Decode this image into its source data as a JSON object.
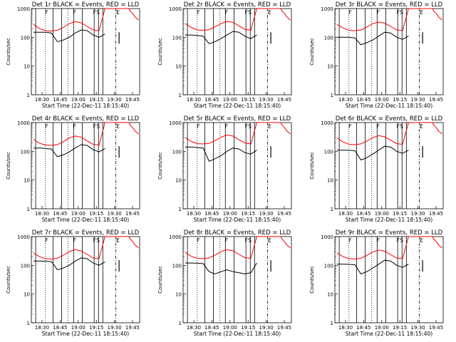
{
  "chart_data": [
    {
      "type": "line",
      "title": "Det 1r BLACK = Events, RED = LLD",
      "xlabel": "Start Time (22-Dec-11 18:15:40)",
      "ylabel": "Counts/sec",
      "yscale": "log",
      "ylim": [
        1,
        1000
      ],
      "xticks": [
        "18:30",
        "18:45",
        "19:00",
        "19:15",
        "19:30",
        "19:45"
      ],
      "yticks": [
        "1",
        "10",
        "100",
        "1000"
      ],
      "series": [
        {
          "name": "RED",
          "values": [
            280,
            200,
            170,
            165,
            175,
            220,
            300,
            350,
            320,
            240,
            180,
            170,
            1000,
            1000,
            800,
            700,
            600,
            500,
            450,
            400
          ]
        },
        {
          "name": "BLACK",
          "values": [
            150,
            150,
            150,
            140,
            70,
            80,
            100,
            140,
            180,
            170,
            120,
            100,
            130,
            null,
            null,
            null,
            null,
            null,
            null,
            null
          ]
        }
      ],
      "markers": [
        "F",
        "F",
        "FS",
        "E"
      ]
    },
    {
      "type": "line",
      "title": "Det 2r BLACK = Events, RED = LLD",
      "xlabel": "Start Time (22-Dec-11 18:15:40)",
      "ylabel": "Counts/sec",
      "yscale": "log",
      "ylim": [
        1,
        1000
      ],
      "xticks": [
        "18:30",
        "18:45",
        "19:00",
        "19:15",
        "19:30",
        "19:45"
      ],
      "yticks": [
        "1",
        "10",
        "100",
        "1000"
      ],
      "series": [
        {
          "name": "RED",
          "values": [
            300,
            220,
            180,
            175,
            185,
            230,
            300,
            360,
            330,
            250,
            190,
            175,
            1000,
            1000,
            800,
            700,
            600,
            500,
            450,
            400
          ]
        },
        {
          "name": "BLACK",
          "values": [
            120,
            120,
            115,
            110,
            60,
            70,
            90,
            120,
            160,
            150,
            110,
            90,
            120,
            null,
            null,
            null,
            null,
            null,
            null,
            null
          ]
        }
      ],
      "markers": [
        "F",
        "F",
        "FS",
        "E"
      ]
    },
    {
      "type": "line",
      "title": "Det 3r BLACK = Events, RED = LLD",
      "xlabel": "Start Time (22-Dec-11 18:15:40)",
      "ylabel": "Counts/sec",
      "yscale": "log",
      "ylim": [
        1,
        1000
      ],
      "xticks": [
        "18:30",
        "18:45",
        "19:00",
        "19:15",
        "19:30",
        "19:45"
      ],
      "yticks": [
        "1",
        "10",
        "100",
        "1000"
      ],
      "series": [
        {
          "name": "RED",
          "values": [
            280,
            210,
            175,
            170,
            180,
            225,
            300,
            340,
            310,
            240,
            180,
            170,
            1000,
            1000,
            800,
            700,
            600,
            500,
            450,
            400
          ]
        },
        {
          "name": "BLACK",
          "values": [
            100,
            100,
            100,
            95,
            55,
            65,
            80,
            110,
            150,
            140,
            100,
            85,
            110,
            null,
            null,
            null,
            null,
            null,
            null,
            null
          ]
        }
      ],
      "markers": [
        "F",
        "F",
        "FS",
        "E"
      ]
    },
    {
      "type": "line",
      "title": "Det 4r BLACK = Events, RED = LLD",
      "xlabel": "Start Time (22-Dec-11 18:15:40)",
      "ylabel": "Counts/sec",
      "yscale": "log",
      "ylim": [
        1,
        1000
      ],
      "xticks": [
        "18:30",
        "18:45",
        "19:00",
        "19:15",
        "19:30",
        "19:45"
      ],
      "yticks": [
        "1",
        "10",
        "100",
        "1000"
      ],
      "series": [
        {
          "name": "RED",
          "values": [
            260,
            190,
            165,
            160,
            170,
            215,
            290,
            340,
            310,
            230,
            175,
            165,
            1000,
            1000,
            800,
            700,
            600,
            500,
            450,
            400
          ]
        },
        {
          "name": "BLACK",
          "values": [
            130,
            130,
            125,
            120,
            65,
            75,
            95,
            130,
            170,
            160,
            115,
            95,
            125,
            null,
            null,
            null,
            null,
            null,
            null,
            null
          ]
        }
      ],
      "markers": [
        "F",
        "F",
        "FS",
        "E"
      ]
    },
    {
      "type": "line",
      "title": "Det 5r BLACK = Events, RED = LLD",
      "xlabel": "Start Time (22-Dec-11 18:15:40)",
      "ylabel": "Counts/sec",
      "yscale": "log",
      "ylim": [
        1,
        1000
      ],
      "xticks": [
        "18:30",
        "18:45",
        "19:00",
        "19:15",
        "19:30",
        "19:45"
      ],
      "yticks": [
        "1",
        "10",
        "100",
        "1000"
      ],
      "series": [
        {
          "name": "RED",
          "values": [
            300,
            220,
            185,
            180,
            190,
            235,
            310,
            370,
            340,
            255,
            195,
            180,
            1000,
            1000,
            800,
            700,
            600,
            500,
            450,
            400
          ]
        },
        {
          "name": "BLACK",
          "values": [
            140,
            140,
            135,
            130,
            45,
            55,
            70,
            100,
            130,
            120,
            90,
            80,
            110,
            null,
            null,
            null,
            null,
            null,
            null,
            null
          ]
        }
      ],
      "markers": [
        "F",
        "F",
        "FS",
        "E"
      ]
    },
    {
      "type": "line",
      "title": "Det 6r BLACK = Events, RED = LLD",
      "xlabel": "Start Time (22-Dec-11 18:15:40)",
      "ylabel": "Counts/sec",
      "yscale": "log",
      "ylim": [
        1,
        1000
      ],
      "xticks": [
        "18:30",
        "18:45",
        "19:00",
        "19:15",
        "19:30",
        "19:45"
      ],
      "yticks": [
        "1",
        "10",
        "100",
        "1000"
      ],
      "series": [
        {
          "name": "RED",
          "values": [
            290,
            210,
            175,
            170,
            180,
            225,
            300,
            350,
            320,
            245,
            185,
            175,
            1000,
            1000,
            800,
            700,
            600,
            500,
            450,
            400
          ]
        },
        {
          "name": "BLACK",
          "values": [
            110,
            110,
            108,
            105,
            50,
            60,
            80,
            110,
            150,
            140,
            100,
            85,
            110,
            null,
            null,
            null,
            null,
            null,
            null,
            null
          ]
        }
      ],
      "markers": [
        "F",
        "F",
        "FS",
        "E"
      ]
    },
    {
      "type": "line",
      "title": "Det 7r BLACK = Events, RED = LLD",
      "xlabel": "Start Time (22-Dec-11 18:15:40)",
      "ylabel": "Counts/sec",
      "yscale": "log",
      "ylim": [
        1,
        1000
      ],
      "xticks": [
        "18:30",
        "18:45",
        "19:00",
        "19:15",
        "19:30",
        "19:45"
      ],
      "yticks": [
        "1",
        "10",
        "100",
        "1000"
      ],
      "series": [
        {
          "name": "RED",
          "values": [
            270,
            200,
            170,
            165,
            175,
            220,
            300,
            350,
            320,
            240,
            180,
            170,
            1000,
            1000,
            800,
            700,
            600,
            500,
            450,
            400
          ]
        },
        {
          "name": "BLACK",
          "values": [
            140,
            140,
            138,
            135,
            70,
            80,
            100,
            140,
            180,
            170,
            120,
            100,
            130,
            null,
            null,
            null,
            null,
            null,
            null,
            null
          ]
        }
      ],
      "markers": [
        "F",
        "F",
        "FS",
        "E"
      ]
    },
    {
      "type": "line",
      "title": "Det 8r BLACK = Events, RED = LLD",
      "xlabel": "Start Time (22-Dec-11 18:15:40)",
      "ylabel": "Counts/sec",
      "yscale": "log",
      "ylim": [
        1,
        1000
      ],
      "xticks": [
        "18:30",
        "18:45",
        "19:00",
        "19:15",
        "19:30",
        "19:45"
      ],
      "yticks": [
        "1",
        "10",
        "100",
        "1000"
      ],
      "series": [
        {
          "name": "RED",
          "values": [
            280,
            205,
            175,
            170,
            180,
            225,
            300,
            350,
            320,
            240,
            185,
            175,
            1000,
            1000,
            800,
            700,
            600,
            500,
            450,
            400
          ]
        },
        {
          "name": "BLACK",
          "values": [
            120,
            120,
            118,
            115,
            60,
            50,
            60,
            70,
            60,
            55,
            50,
            55,
            120,
            null,
            null,
            null,
            null,
            null,
            null,
            null
          ]
        }
      ],
      "markers": [
        "F",
        "F",
        "FS",
        "E"
      ]
    },
    {
      "type": "line",
      "title": "Det 9r BLACK = Events, RED = LLD",
      "xlabel": "Start Time (22-Dec-11 18:15:40)",
      "ylabel": "Counts/sec",
      "yscale": "log",
      "ylim": [
        1,
        1000
      ],
      "xticks": [
        "18:30",
        "18:45",
        "19:00",
        "19:15",
        "19:30",
        "19:45"
      ],
      "yticks": [
        "1",
        "10",
        "100",
        "1000"
      ],
      "series": [
        {
          "name": "RED",
          "values": [
            270,
            200,
            170,
            165,
            175,
            220,
            290,
            340,
            310,
            235,
            180,
            170,
            1000,
            1000,
            800,
            700,
            600,
            500,
            450,
            400
          ]
        },
        {
          "name": "BLACK",
          "values": [
            110,
            110,
            108,
            105,
            50,
            60,
            80,
            110,
            150,
            140,
            100,
            85,
            110,
            null,
            null,
            null,
            null,
            null,
            null,
            null
          ]
        }
      ],
      "markers": [
        "F",
        "F",
        "FS",
        "E"
      ]
    }
  ],
  "colors": {
    "events": "#000000",
    "lld": "#ff0000",
    "background": "#ffffff"
  }
}
